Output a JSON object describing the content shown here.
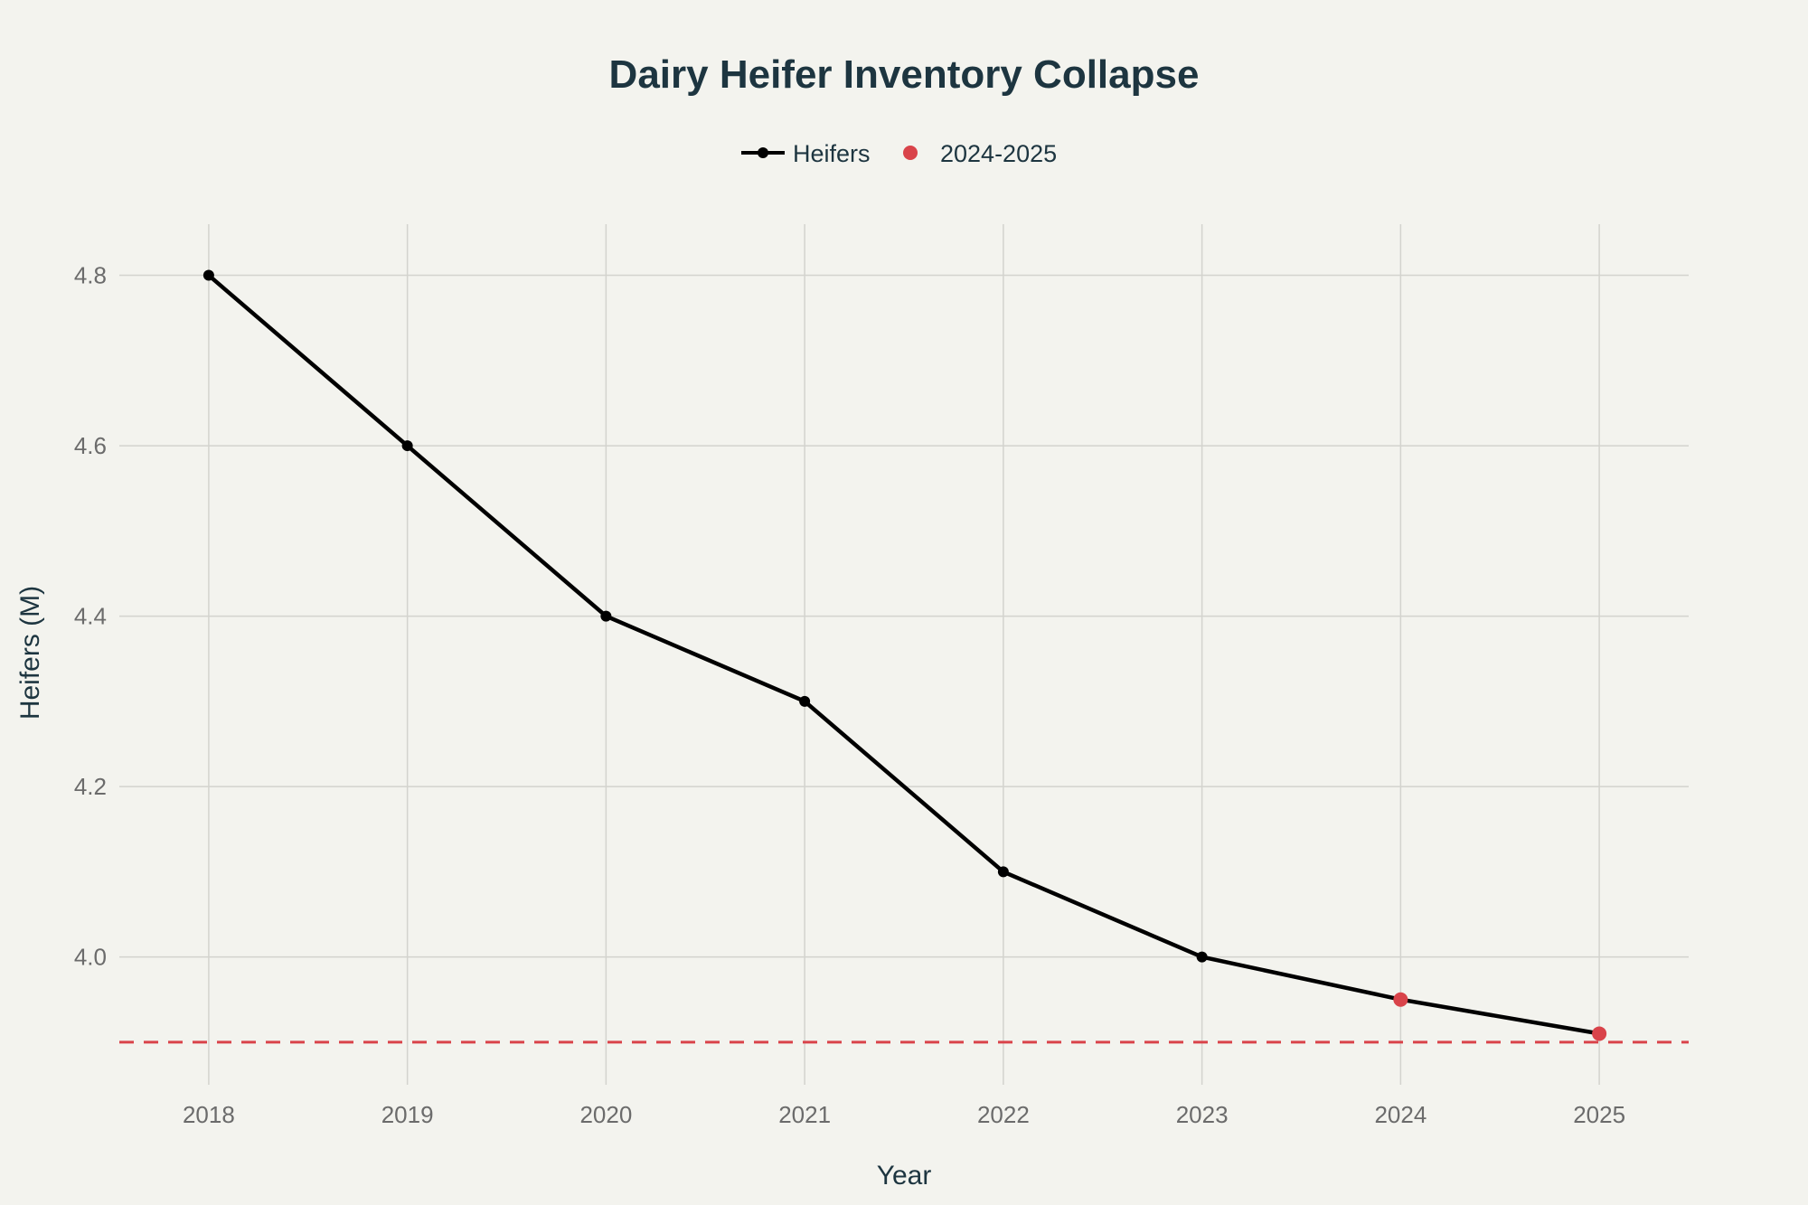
{
  "chart_data": {
    "type": "line",
    "title": "Dairy Heifer Inventory Collapse",
    "xlabel": "Year",
    "ylabel": "Heifers (M)",
    "x": [
      2018,
      2019,
      2020,
      2021,
      2022,
      2023,
      2024,
      2025
    ],
    "xlim": [
      2017.55,
      2025.45
    ],
    "ylim": [
      3.85,
      4.86
    ],
    "yticks": [
      4.0,
      4.2,
      4.4,
      4.6,
      4.8
    ],
    "grid": true,
    "legend_position": "top-center",
    "series": [
      {
        "name": "Heifers",
        "kind": "line+markers",
        "color": "#000000",
        "x": [
          2018,
          2019,
          2020,
          2021,
          2022,
          2023,
          2024,
          2025
        ],
        "values": [
          4.8,
          4.6,
          4.4,
          4.3,
          4.1,
          4.0,
          3.95,
          3.91
        ]
      },
      {
        "name": "2024-2025",
        "kind": "markers",
        "color": "#d9434a",
        "x": [
          2024,
          2025
        ],
        "values": [
          3.95,
          3.91
        ]
      }
    ],
    "reference_line": {
      "y": 3.9,
      "style": "dashed",
      "color": "#d9434a"
    }
  }
}
